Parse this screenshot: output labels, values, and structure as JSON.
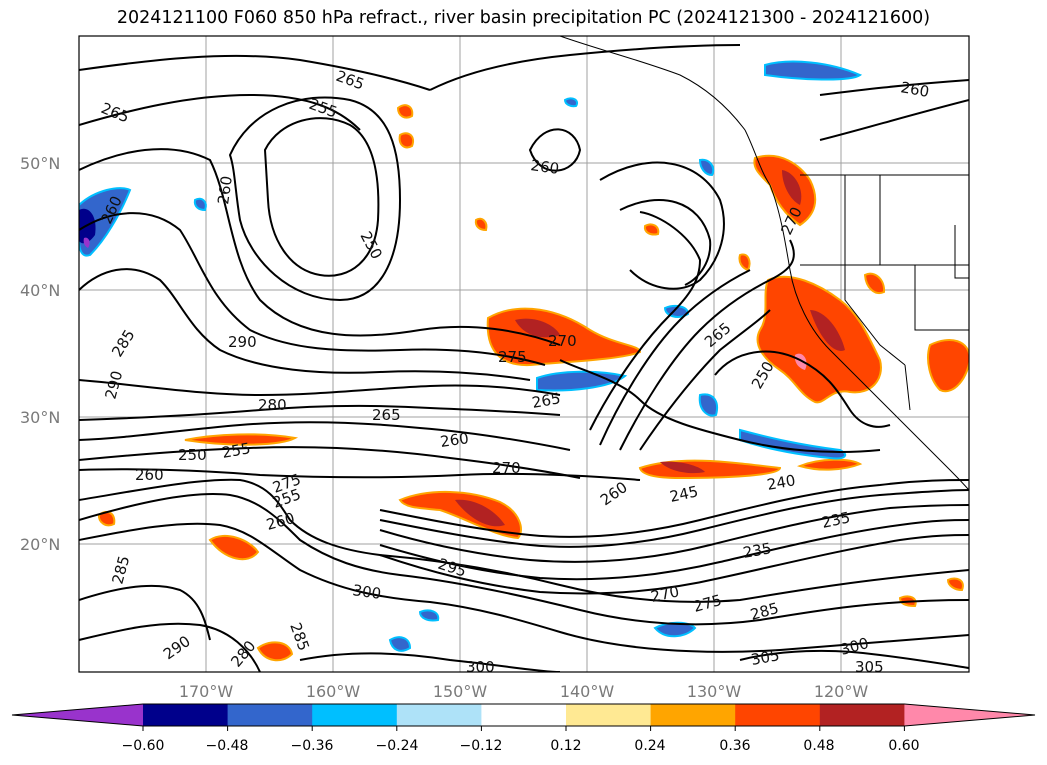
{
  "title": "2024121100 F060 850 hPa refract., river basin precipitation PC (2024121300 - 2024121600)",
  "map": {
    "lat_labels": [
      "50°N",
      "40°N",
      "30°N",
      "20°N"
    ],
    "lon_labels": [
      "170°W",
      "160°W",
      "150°W",
      "140°W",
      "130°W",
      "120°W"
    ],
    "contour_labels": [
      "265",
      "255",
      "265",
      "260",
      "260",
      "250",
      "260",
      "290",
      "285",
      "290",
      "280",
      "265",
      "250",
      "255",
      "275",
      "265",
      "260",
      "270",
      "260",
      "275",
      "255",
      "270",
      "265",
      "250",
      "285",
      "260",
      "295",
      "300",
      "300",
      "290",
      "285",
      "280",
      "270",
      "275",
      "285",
      "305",
      "300",
      "305",
      "240",
      "245",
      "235",
      "235",
      "260",
      "270"
    ]
  },
  "colorbar": {
    "ticks": [
      "−0.60",
      "−0.48",
      "−0.36",
      "−0.24",
      "−0.12",
      "0.12",
      "0.24",
      "0.36",
      "0.48",
      "0.60"
    ],
    "colors": [
      "#9933cc",
      "#00008b",
      "#3366cc",
      "#00bfff",
      "#aee2f8",
      "#ffffff",
      "#ffe993",
      "#ffa500",
      "#ff4500",
      "#b22222",
      "#ff88aa"
    ]
  }
}
